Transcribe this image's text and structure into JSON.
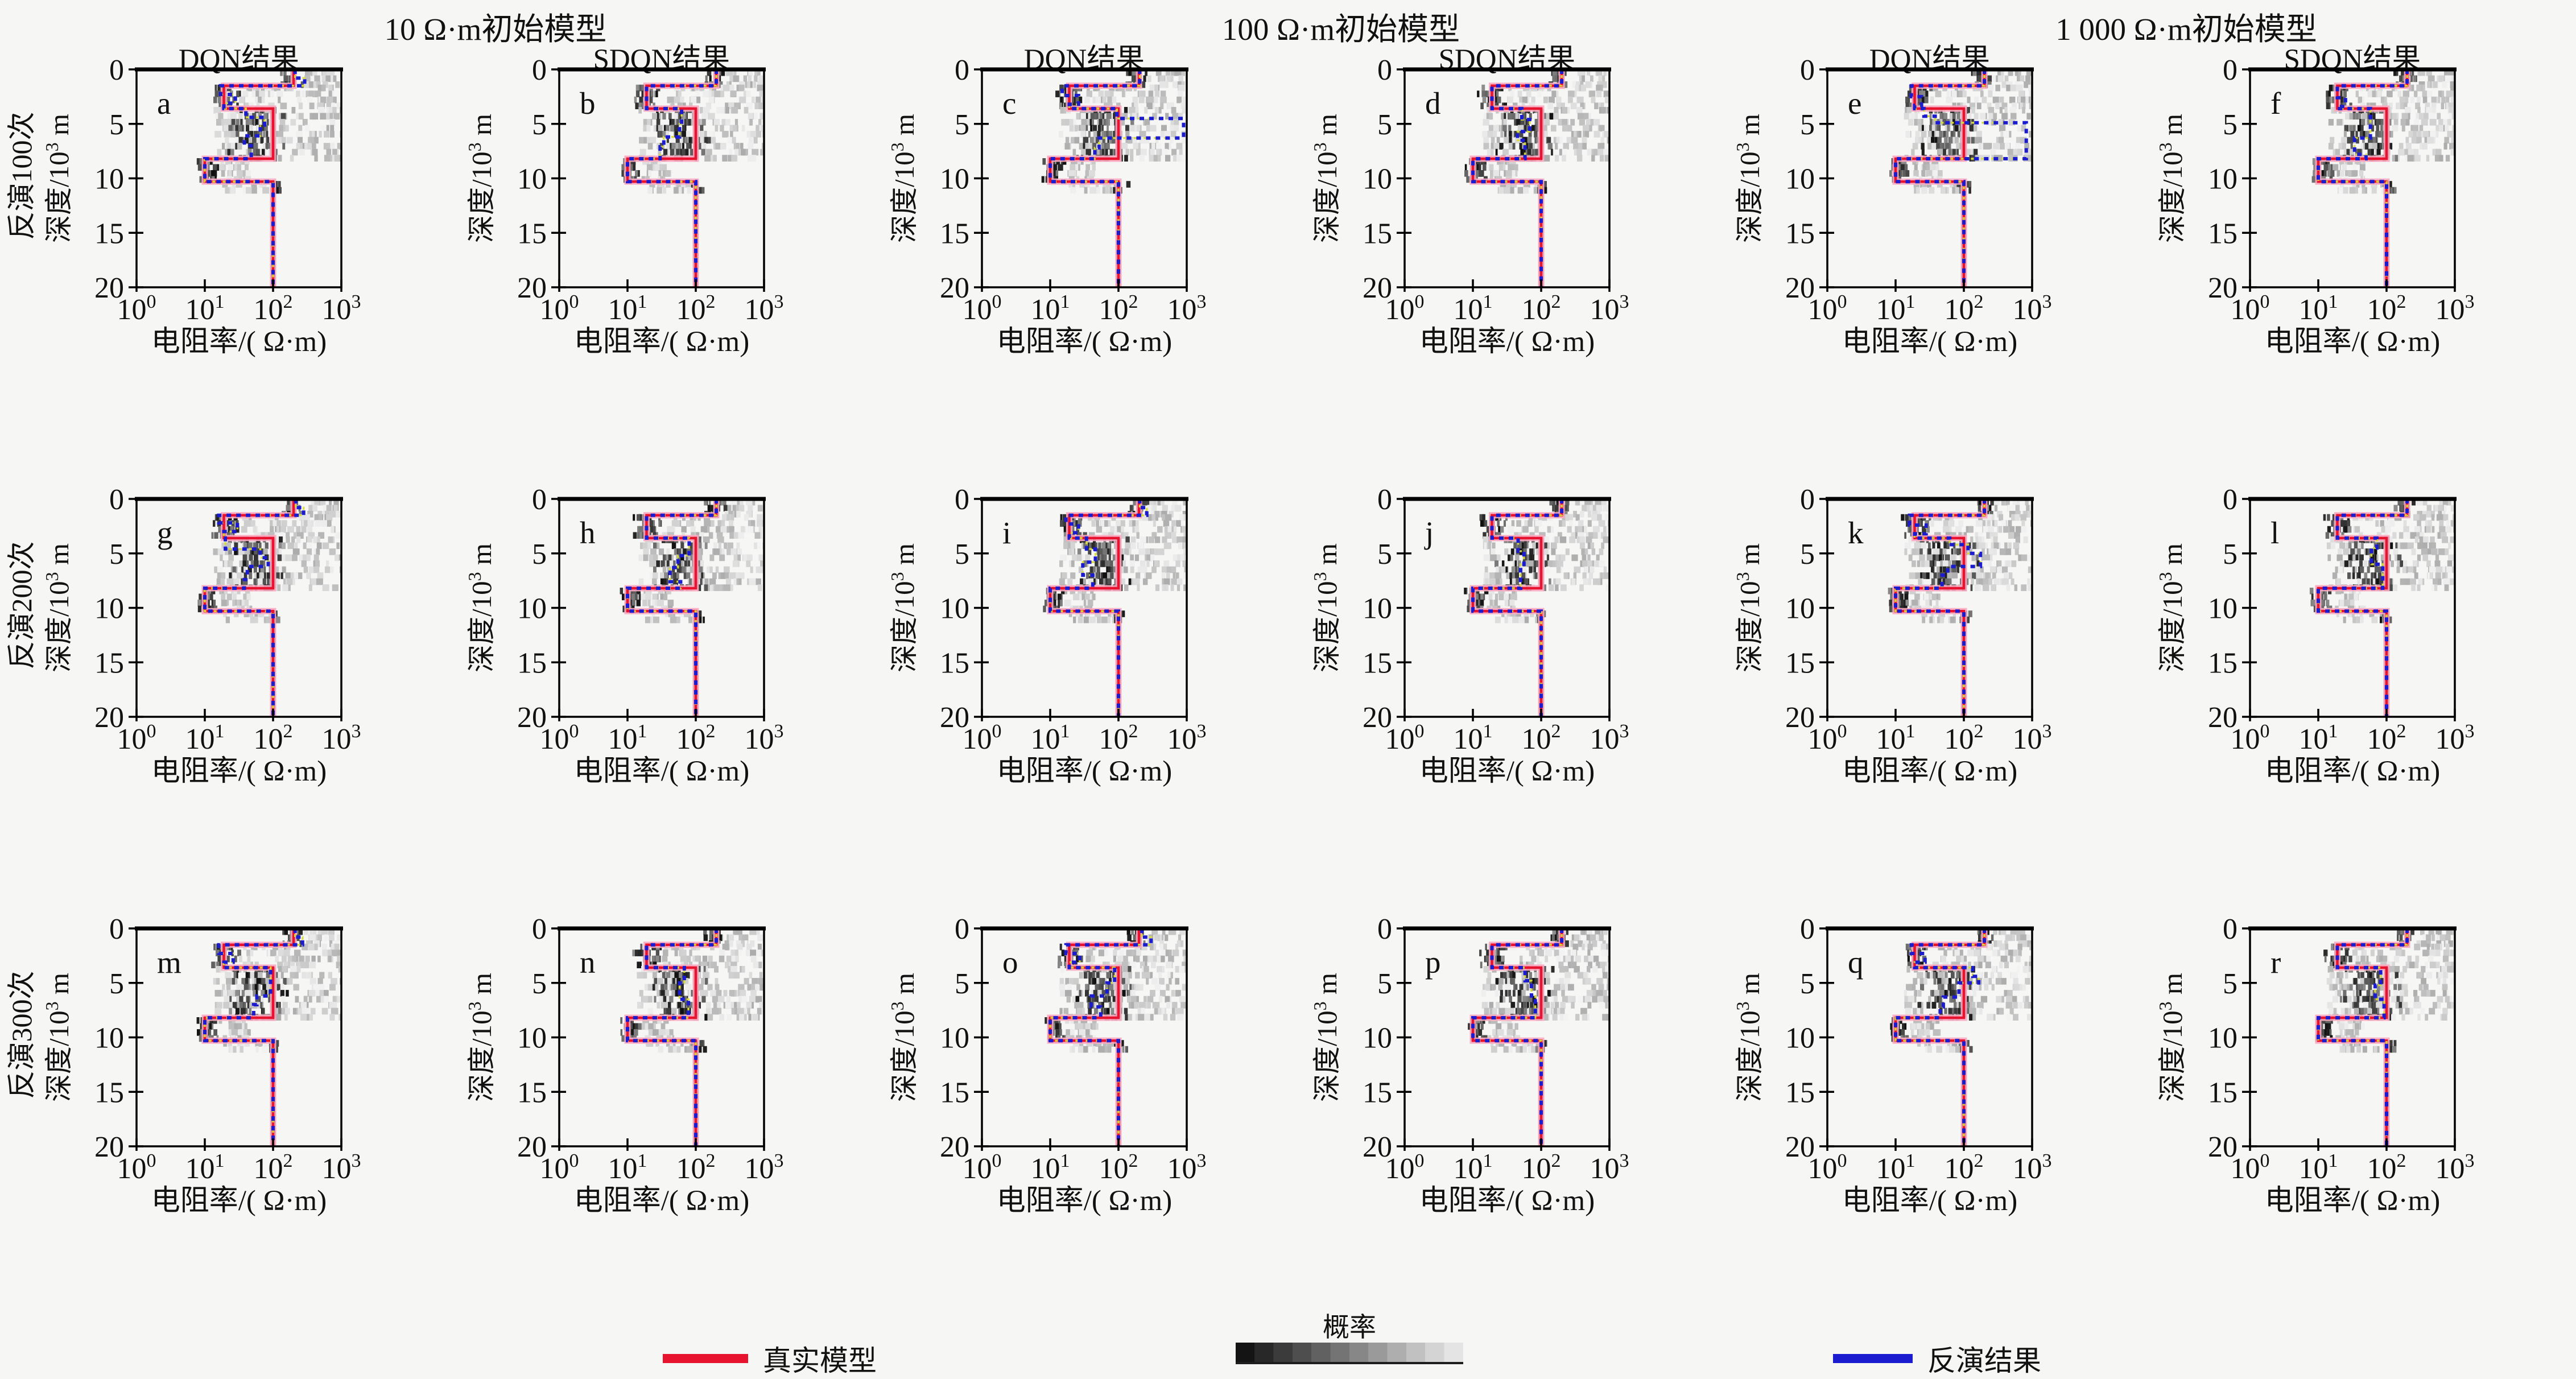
{
  "groups": [
    {
      "title": "10 Ω·m初始模型",
      "columns": [
        "DQN结果",
        "SDQN结果"
      ]
    },
    {
      "title": "100 Ω·m初始模型",
      "columns": [
        "DQN结果",
        "SDQN结果"
      ]
    },
    {
      "title": "1 000 Ω·m初始模型",
      "columns": [
        "DQN结果",
        "SDQN结果"
      ]
    }
  ],
  "rows": [
    "反演100次",
    "反演200次",
    "反演300次"
  ],
  "axes": {
    "xlabel": "电阻率/( Ω·m)",
    "ylabel_base": "深度/10",
    "ylabel_sup": "3",
    "ylabel_unit": " m",
    "xtick_base": "10",
    "xtick_exponents": [
      "0",
      "1",
      "2",
      "3"
    ],
    "yticks": [
      "0",
      "5",
      "10",
      "15",
      "20"
    ]
  },
  "legend": {
    "true_model_label": "真实模型",
    "probability_label": "概率",
    "inversion_label": "反演结果",
    "true_model_color": "#e8132f",
    "inversion_color": "#1b1bd0"
  },
  "colors": {
    "background": "#f6f6f5",
    "frame": "#000000",
    "true_halo": "#fba9c0",
    "inversion_accent": "#d8db3e",
    "cloud_dark": "#262626",
    "cloud_light": "#d9d9d9"
  },
  "chart_data": {
    "type": "line",
    "title": "",
    "xlabel": "电阻率/( Ω·m)",
    "ylabel": "深度/10³ m",
    "x_scale": "log10",
    "xlim_log": [
      0,
      3
    ],
    "ylim": [
      0,
      20
    ],
    "grid": false,
    "legend_position": "bottom",
    "true_model_layers": [
      [
        0,
        1.5,
        200
      ],
      [
        1.5,
        3.6,
        19
      ],
      [
        3.6,
        8.2,
        100
      ],
      [
        8.2,
        10.3,
        10
      ],
      [
        10.3,
        20,
        100
      ]
    ],
    "cloud_bands": [
      {
        "d0": 0.3,
        "d1": 1.4,
        "step": 0.55,
        "dark": [
          2.08,
          2.42
        ],
        "light": [
          2.42,
          2.95
        ],
        "dn": 7
      },
      {
        "d0": 1.7,
        "d1": 3.4,
        "step": 0.55,
        "dark": [
          1.05,
          1.5
        ],
        "light": [
          1.5,
          2.98
        ],
        "dn": 9
      },
      {
        "d0": 3.75,
        "d1": 8.15,
        "step": 0.55,
        "dark": [
          1.3,
          2.2
        ],
        "light": [
          1.12,
          2.98
        ],
        "dn": 10
      },
      {
        "d0": 8.45,
        "d1": 10.1,
        "step": 0.55,
        "dark": [
          0.85,
          1.2
        ],
        "light": [
          1.2,
          1.62
        ],
        "dn": 8
      },
      {
        "d0": 10.55,
        "d1": 11.1,
        "step": 0.55,
        "dark": [
          1.88,
          2.12
        ],
        "light": [
          1.25,
          1.95
        ],
        "dn": 4
      }
    ],
    "subplots": [
      {
        "label": "a",
        "row": 0,
        "col": 0,
        "inversion": [
          [
            0,
            0.8,
            210
          ],
          [
            0.8,
            1.5,
            290
          ],
          [
            1.5,
            2.3,
            17
          ],
          [
            2.3,
            3.1,
            28
          ],
          [
            3.1,
            3.6,
            19
          ],
          [
            3.6,
            4.4,
            40
          ],
          [
            4.4,
            5.1,
            75
          ],
          [
            5.1,
            6.1,
            65
          ],
          [
            6.1,
            7,
            38
          ],
          [
            7,
            8.2,
            48
          ],
          [
            8.2,
            10.3,
            10
          ],
          [
            10.3,
            20,
            100
          ]
        ]
      },
      {
        "label": "b",
        "row": 0,
        "col": 1,
        "inversion": [
          [
            0,
            1.5,
            200
          ],
          [
            1.5,
            3.6,
            19
          ],
          [
            3.6,
            5,
            62
          ],
          [
            5,
            6.2,
            58
          ],
          [
            6.2,
            7.1,
            34
          ],
          [
            7.1,
            8.2,
            30
          ],
          [
            8.2,
            10.3,
            10
          ],
          [
            10.3,
            20,
            100
          ]
        ]
      },
      {
        "label": "c",
        "row": 0,
        "col": 2,
        "inversion": [
          [
            0,
            1.5,
            205
          ],
          [
            1.5,
            2.4,
            15
          ],
          [
            2.4,
            3.2,
            26
          ],
          [
            3.2,
            3.6,
            19
          ],
          [
            3.6,
            4.5,
            95
          ],
          [
            4.5,
            6.3,
            900
          ],
          [
            6.3,
            7.2,
            52
          ],
          [
            7.2,
            8.2,
            45
          ],
          [
            8.2,
            10.3,
            10
          ],
          [
            10.3,
            20,
            100
          ]
        ]
      },
      {
        "label": "d",
        "row": 0,
        "col": 3,
        "inversion": [
          [
            0,
            1.5,
            200
          ],
          [
            1.5,
            3.6,
            19
          ],
          [
            3.6,
            4.6,
            52
          ],
          [
            4.6,
            5.7,
            68
          ],
          [
            5.7,
            6.5,
            45
          ],
          [
            6.5,
            8.2,
            58
          ],
          [
            8.2,
            10.3,
            10
          ],
          [
            10.3,
            20,
            100
          ]
        ]
      },
      {
        "label": "e",
        "row": 0,
        "col": 4,
        "inversion": [
          [
            0,
            1.5,
            200
          ],
          [
            1.5,
            2.5,
            17
          ],
          [
            2.5,
            3.3,
            24
          ],
          [
            3.3,
            3.6,
            19
          ],
          [
            3.6,
            4.3,
            26
          ],
          [
            4.3,
            4.9,
            38
          ],
          [
            4.9,
            8.2,
            820
          ],
          [
            8.2,
            10.3,
            10
          ],
          [
            10.3,
            20,
            100
          ]
        ]
      },
      {
        "label": "f",
        "row": 0,
        "col": 5,
        "inversion": [
          [
            0,
            1.5,
            200
          ],
          [
            1.5,
            2.6,
            19
          ],
          [
            2.6,
            3.4,
            25
          ],
          [
            3.4,
            3.6,
            19
          ],
          [
            3.6,
            6.3,
            58
          ],
          [
            6.3,
            7.8,
            34
          ],
          [
            7.8,
            8.2,
            50
          ],
          [
            8.2,
            10.3,
            10
          ],
          [
            10.3,
            20,
            100
          ]
        ]
      },
      {
        "label": "g",
        "row": 1,
        "col": 0,
        "inversion": [
          [
            0,
            0.8,
            215
          ],
          [
            0.8,
            1.5,
            280
          ],
          [
            1.5,
            2.2,
            16
          ],
          [
            2.2,
            3,
            30
          ],
          [
            3,
            3.6,
            19
          ],
          [
            3.6,
            4.6,
            20
          ],
          [
            4.6,
            5.4,
            65
          ],
          [
            5.4,
            6.2,
            85
          ],
          [
            6.2,
            7.4,
            42
          ],
          [
            7.4,
            8.2,
            38
          ],
          [
            8.2,
            10.3,
            10
          ],
          [
            10.3,
            20,
            100
          ]
        ]
      },
      {
        "label": "h",
        "row": 1,
        "col": 1,
        "inversion": [
          [
            0,
            1.5,
            200
          ],
          [
            1.5,
            3.6,
            19
          ],
          [
            3.6,
            5.2,
            80
          ],
          [
            5.2,
            6.3,
            55
          ],
          [
            6.3,
            7.6,
            42
          ],
          [
            7.6,
            8.2,
            60
          ],
          [
            8.2,
            10.3,
            10
          ],
          [
            10.3,
            20,
            100
          ]
        ]
      },
      {
        "label": "i",
        "row": 1,
        "col": 2,
        "inversion": [
          [
            0,
            0.8,
            205
          ],
          [
            0.8,
            1.5,
            260
          ],
          [
            1.5,
            2.3,
            17
          ],
          [
            2.3,
            3.1,
            26
          ],
          [
            3.1,
            3.6,
            19
          ],
          [
            3.6,
            4.6,
            34
          ],
          [
            4.6,
            5.8,
            46
          ],
          [
            5.8,
            7,
            30
          ],
          [
            7,
            8.2,
            42
          ],
          [
            8.2,
            10.3,
            10
          ],
          [
            10.3,
            20,
            100
          ]
        ]
      },
      {
        "label": "j",
        "row": 1,
        "col": 3,
        "inversion": [
          [
            0,
            1.5,
            200
          ],
          [
            1.5,
            3.6,
            19
          ],
          [
            3.6,
            4.8,
            46
          ],
          [
            4.8,
            6,
            56
          ],
          [
            6,
            8.2,
            50
          ],
          [
            8.2,
            10.3,
            10
          ],
          [
            10.3,
            20,
            100
          ]
        ]
      },
      {
        "label": "k",
        "row": 1,
        "col": 4,
        "inversion": [
          [
            0,
            1.5,
            200
          ],
          [
            1.5,
            2.4,
            16
          ],
          [
            2.4,
            3.2,
            28
          ],
          [
            3.2,
            3.6,
            19
          ],
          [
            3.6,
            4.2,
            62
          ],
          [
            4.2,
            5,
            115
          ],
          [
            5,
            6.2,
            175
          ],
          [
            6.2,
            7,
            58
          ],
          [
            7,
            8.2,
            48
          ],
          [
            8.2,
            10.3,
            10
          ],
          [
            10.3,
            20,
            100
          ]
        ]
      },
      {
        "label": "l",
        "row": 1,
        "col": 5,
        "inversion": [
          [
            0,
            1.5,
            200
          ],
          [
            1.5,
            3.6,
            19
          ],
          [
            3.6,
            4.5,
            72
          ],
          [
            4.5,
            6,
            60
          ],
          [
            6,
            8.2,
            88
          ],
          [
            8.2,
            10.3,
            10
          ],
          [
            10.3,
            20,
            100
          ]
        ]
      },
      {
        "label": "m",
        "row": 2,
        "col": 0,
        "inversion": [
          [
            0,
            0.8,
            210
          ],
          [
            0.8,
            1.5,
            270
          ],
          [
            1.5,
            2.3,
            16
          ],
          [
            2.3,
            3.1,
            26
          ],
          [
            3.1,
            3.6,
            19
          ],
          [
            3.6,
            6.2,
            92
          ],
          [
            6.2,
            7,
            58
          ],
          [
            7,
            8.2,
            52
          ],
          [
            8.2,
            10.3,
            10
          ],
          [
            10.3,
            20,
            100
          ]
        ]
      },
      {
        "label": "n",
        "row": 2,
        "col": 1,
        "inversion": [
          [
            0,
            1.5,
            200
          ],
          [
            1.5,
            3.6,
            19
          ],
          [
            3.6,
            5,
            68
          ],
          [
            5,
            6.5,
            58
          ],
          [
            6.5,
            8.2,
            78
          ],
          [
            8.2,
            10.3,
            10
          ],
          [
            10.3,
            20,
            100
          ]
        ]
      },
      {
        "label": "o",
        "row": 2,
        "col": 2,
        "inversion": [
          [
            0,
            0.8,
            220
          ],
          [
            0.8,
            1.5,
            300
          ],
          [
            1.5,
            2.3,
            17
          ],
          [
            2.3,
            3.1,
            27
          ],
          [
            3.1,
            3.6,
            19
          ],
          [
            3.6,
            5,
            88
          ],
          [
            5,
            6.2,
            68
          ],
          [
            6.2,
            7.2,
            40
          ],
          [
            7.2,
            8.2,
            55
          ],
          [
            8.2,
            10.3,
            10
          ],
          [
            10.3,
            20,
            100
          ]
        ]
      },
      {
        "label": "p",
        "row": 2,
        "col": 3,
        "inversion": [
          [
            0,
            1.5,
            200
          ],
          [
            1.5,
            3.6,
            19
          ],
          [
            3.6,
            4.8,
            58
          ],
          [
            4.8,
            6.2,
            72
          ],
          [
            6.2,
            8.2,
            82
          ],
          [
            8.2,
            10.3,
            10
          ],
          [
            10.3,
            20,
            100
          ]
        ]
      },
      {
        "label": "q",
        "row": 2,
        "col": 4,
        "inversion": [
          [
            0,
            1.5,
            200
          ],
          [
            1.5,
            2.3,
            17
          ],
          [
            2.3,
            3.1,
            27
          ],
          [
            3.1,
            3.6,
            19
          ],
          [
            3.6,
            4.4,
            135
          ],
          [
            4.4,
            5,
            165
          ],
          [
            5,
            6.3,
            85
          ],
          [
            6.3,
            7.2,
            50
          ],
          [
            7.2,
            8.2,
            45
          ],
          [
            8.2,
            10.3,
            10
          ],
          [
            10.3,
            20,
            100
          ]
        ]
      },
      {
        "label": "r",
        "row": 2,
        "col": 5,
        "inversion": [
          [
            0,
            1.5,
            200
          ],
          [
            1.5,
            3.6,
            19
          ],
          [
            3.6,
            5.2,
            82
          ],
          [
            5.2,
            6.5,
            68
          ],
          [
            6.5,
            8.2,
            92
          ],
          [
            8.2,
            10.3,
            10
          ],
          [
            10.3,
            20,
            100
          ]
        ]
      }
    ]
  }
}
